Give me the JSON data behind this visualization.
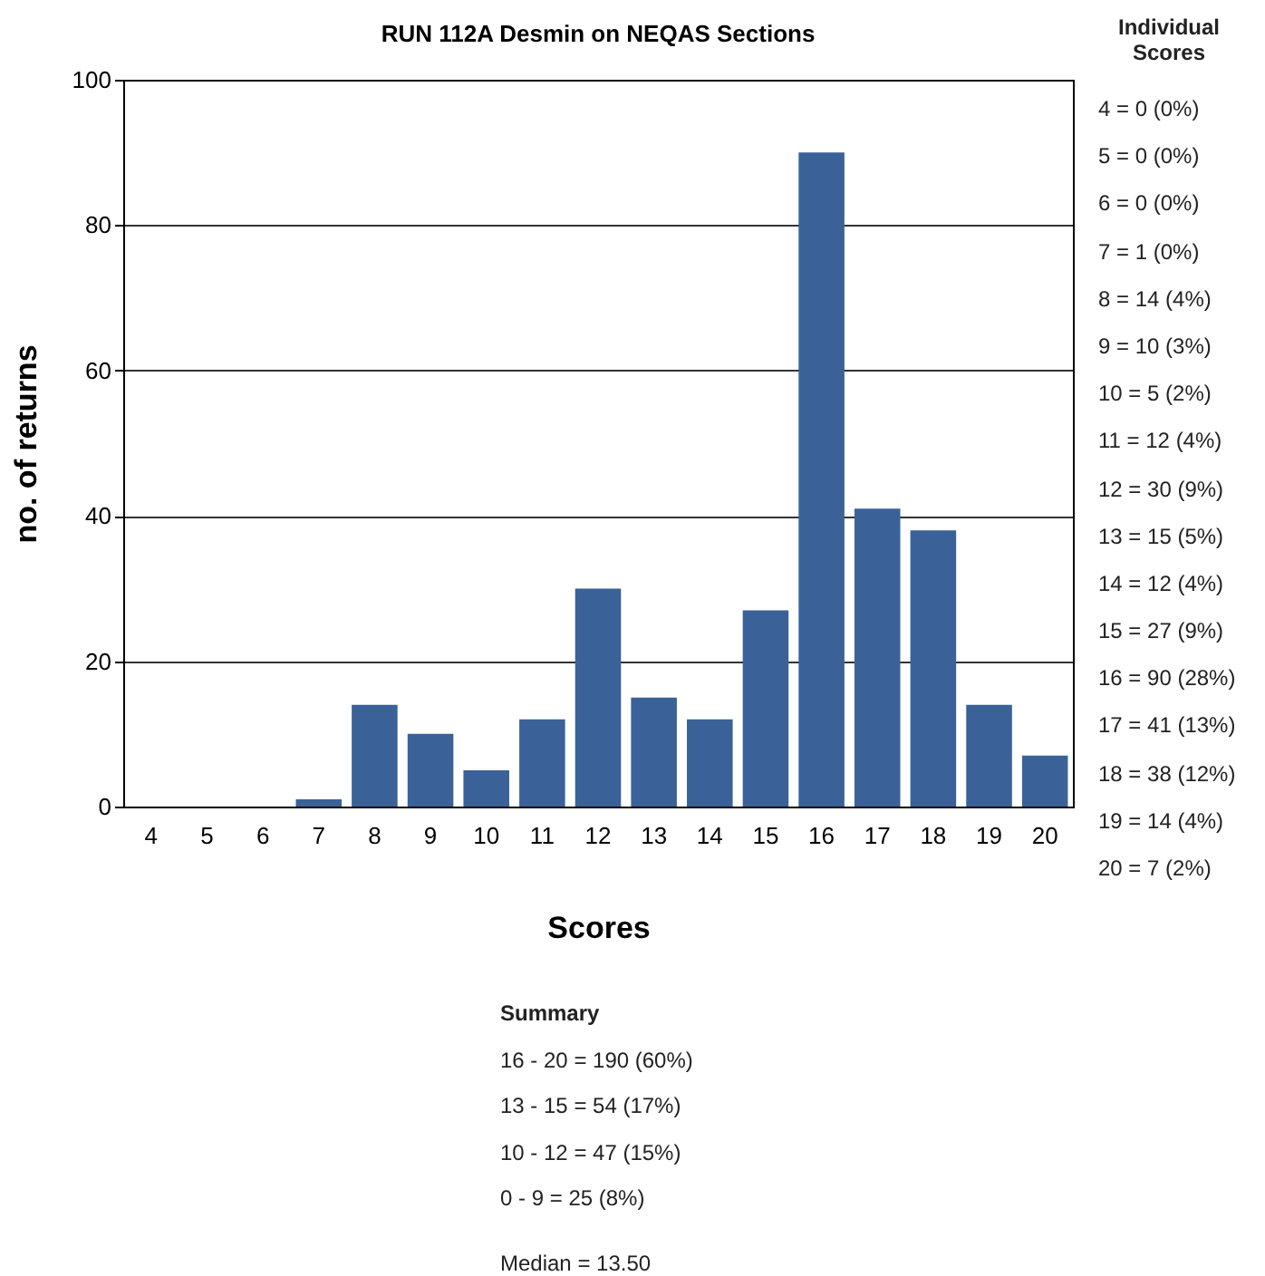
{
  "chart_data": {
    "type": "bar",
    "title": "RUN 112A Desmin on NEQAS Sections",
    "xlabel": "Scores",
    "ylabel": "no. of returns",
    "categories": [
      "4",
      "5",
      "6",
      "7",
      "8",
      "9",
      "10",
      "11",
      "12",
      "13",
      "14",
      "15",
      "16",
      "17",
      "18",
      "19",
      "20"
    ],
    "values": [
      0,
      0,
      0,
      1,
      14,
      10,
      5,
      12,
      30,
      15,
      12,
      27,
      90,
      41,
      38,
      14,
      7
    ],
    "color": "#3a6298",
    "ylim": [
      0,
      100
    ],
    "yticks": [
      0,
      20,
      40,
      60,
      80,
      100
    ],
    "grid": "y",
    "annotations": [
      "Individual Scores",
      "4 = 0 (0%)",
      "5 = 0 (0%)",
      "6 = 0 (0%)",
      "7 = 1 (0%)",
      "8 = 14 (4%)",
      "9 = 10 (3%)",
      "10 = 5 (2%)",
      "11 = 12 (4%)",
      "12 = 30 (9%)",
      "13 = 15 (5%)",
      "14 = 12 (4%)",
      "15 = 27 (9%)",
      "16 = 90 (28%)",
      "17 = 41 (13%)",
      "18 = 38 (12%)",
      "19 = 14 (4%)",
      "20 = 7 (2%)",
      "Summary",
      "16 - 20 = 190 (60%)",
      "13 - 15 = 54 (17%)",
      "10 - 12 = 47 (15%)",
      "0 - 9 = 25 (8%)",
      "Median = 13.50"
    ]
  }
}
